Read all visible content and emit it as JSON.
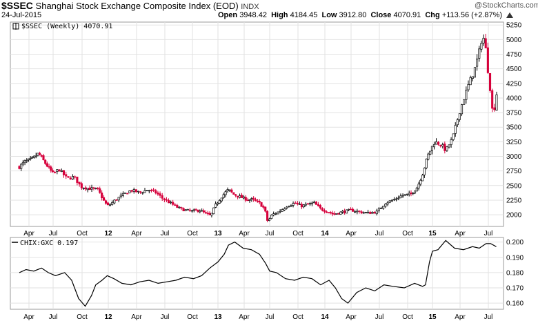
{
  "header": {
    "ticker": "$SSEC",
    "name": "Shanghai Stock Exchange Composite Index (EOD)",
    "exchange": "INDX",
    "date": "24-Jul-2015",
    "open_label": "Open",
    "open": "3948.42",
    "high_label": "High",
    "high": "4184.45",
    "low_label": "Low",
    "low": "3912.80",
    "close_label": "Close",
    "close": "4070.91",
    "chg_label": "Chg",
    "chg": "+113.56 (+2.87%)",
    "watermark": "@StockCharts.com",
    "chg_icon": "triangle-up-icon"
  },
  "chart_data": [
    {
      "type": "candlestick",
      "legend": "$SSEC (Weekly) 4070.91",
      "y_ticks": [
        "5250",
        "5000",
        "4750",
        "4500",
        "4250",
        "4000",
        "3750",
        "3500",
        "3250",
        "3000",
        "2750",
        "2500",
        "2250",
        "2000"
      ],
      "ylim": [
        1800,
        5300
      ],
      "x_ticks": [
        {
          "label": "Apr",
          "bold": false
        },
        {
          "label": "Jul",
          "bold": false
        },
        {
          "label": "Oct",
          "bold": false
        },
        {
          "label": "12",
          "bold": true
        },
        {
          "label": "Apr",
          "bold": false
        },
        {
          "label": "Jul",
          "bold": false
        },
        {
          "label": "Oct",
          "bold": false
        },
        {
          "label": "13",
          "bold": true
        },
        {
          "label": "Apr",
          "bold": false
        },
        {
          "label": "Jul",
          "bold": false
        },
        {
          "label": "Oct",
          "bold": false
        },
        {
          "label": "14",
          "bold": true
        },
        {
          "label": "Apr",
          "bold": false
        },
        {
          "label": "Jul",
          "bold": false
        },
        {
          "label": "Oct",
          "bold": false
        },
        {
          "label": "15",
          "bold": true
        },
        {
          "label": "Apr",
          "bold": false
        },
        {
          "label": "Jul",
          "bold": false
        }
      ],
      "close_path": [
        [
          2011.15,
          2820
        ],
        [
          2011.2,
          2900
        ],
        [
          2011.28,
          2950
        ],
        [
          2011.35,
          3050
        ],
        [
          2011.42,
          2880
        ],
        [
          2011.5,
          2700
        ],
        [
          2011.55,
          2780
        ],
        [
          2011.62,
          2620
        ],
        [
          2011.68,
          2650
        ],
        [
          2011.74,
          2480
        ],
        [
          2011.82,
          2450
        ],
        [
          2011.9,
          2430
        ],
        [
          2011.97,
          2200
        ],
        [
          2012.0,
          2150
        ],
        [
          2012.06,
          2250
        ],
        [
          2012.12,
          2330
        ],
        [
          2012.2,
          2420
        ],
        [
          2012.28,
          2380
        ],
        [
          2012.35,
          2430
        ],
        [
          2012.42,
          2380
        ],
        [
          2012.48,
          2280
        ],
        [
          2012.55,
          2200
        ],
        [
          2012.62,
          2120
        ],
        [
          2012.68,
          2080
        ],
        [
          2012.75,
          2060
        ],
        [
          2012.82,
          2080
        ],
        [
          2012.88,
          2020
        ],
        [
          2012.93,
          1980
        ],
        [
          2012.97,
          2150
        ],
        [
          2013.03,
          2300
        ],
        [
          2013.08,
          2400
        ],
        [
          2013.1,
          2430
        ],
        [
          2013.15,
          2350
        ],
        [
          2013.22,
          2300
        ],
        [
          2013.28,
          2260
        ],
        [
          2013.33,
          2260
        ],
        [
          2013.4,
          2200
        ],
        [
          2013.45,
          2100
        ],
        [
          2013.48,
          1880
        ],
        [
          2013.52,
          2000
        ],
        [
          2013.58,
          2050
        ],
        [
          2013.65,
          2150
        ],
        [
          2013.72,
          2200
        ],
        [
          2013.78,
          2150
        ],
        [
          2013.85,
          2180
        ],
        [
          2013.9,
          2200
        ],
        [
          2013.96,
          2100
        ],
        [
          2014.02,
          2060
        ],
        [
          2014.08,
          2010
        ],
        [
          2014.15,
          2040
        ],
        [
          2014.25,
          2080
        ],
        [
          2014.32,
          2050
        ],
        [
          2014.4,
          2030
        ],
        [
          2014.48,
          2050
        ],
        [
          2014.55,
          2200
        ],
        [
          2014.62,
          2250
        ],
        [
          2014.7,
          2330
        ],
        [
          2014.78,
          2350
        ],
        [
          2014.85,
          2480
        ],
        [
          2014.9,
          2700
        ],
        [
          2014.95,
          3000
        ],
        [
          2015.02,
          3250
        ],
        [
          2015.08,
          3200
        ],
        [
          2015.12,
          3100
        ],
        [
          2015.18,
          3300
        ],
        [
          2015.25,
          3800
        ],
        [
          2015.32,
          4200
        ],
        [
          2015.38,
          4500
        ],
        [
          2015.42,
          4800
        ],
        [
          2015.45,
          5100
        ],
        [
          2015.48,
          4800
        ],
        [
          2015.5,
          4400
        ],
        [
          2015.52,
          4100
        ],
        [
          2015.54,
          3700
        ],
        [
          2015.56,
          3900
        ],
        [
          2015.57,
          4070
        ]
      ]
    },
    {
      "type": "line",
      "legend": "CHIX:GXC 0.197",
      "y_ticks": [
        "0.200",
        "0.190",
        "0.180",
        "0.170",
        "0.160"
      ],
      "ylim": [
        0.156,
        0.203
      ],
      "x_ticks": [
        {
          "label": "Apr",
          "bold": false
        },
        {
          "label": "Jul",
          "bold": false
        },
        {
          "label": "Oct",
          "bold": false
        },
        {
          "label": "12",
          "bold": true
        },
        {
          "label": "Apr",
          "bold": false
        },
        {
          "label": "Jul",
          "bold": false
        },
        {
          "label": "Oct",
          "bold": false
        },
        {
          "label": "13",
          "bold": true
        },
        {
          "label": "Apr",
          "bold": false
        },
        {
          "label": "Jul",
          "bold": false
        },
        {
          "label": "Oct",
          "bold": false
        },
        {
          "label": "14",
          "bold": true
        },
        {
          "label": "Apr",
          "bold": false
        },
        {
          "label": "Jul",
          "bold": false
        },
        {
          "label": "Oct",
          "bold": false
        },
        {
          "label": "15",
          "bold": true
        },
        {
          "label": "Apr",
          "bold": false
        },
        {
          "label": "Jul",
          "bold": false
        }
      ],
      "series": [
        {
          "x": [
            2011.15,
            2011.22,
            2011.3,
            2011.38,
            2011.45,
            2011.52,
            2011.6,
            2011.66,
            2011.72,
            2011.78,
            2011.84,
            2011.88,
            2011.94,
            2011.99,
            2012.05,
            2012.12,
            2012.2,
            2012.28,
            2012.36,
            2012.44,
            2012.52,
            2012.6,
            2012.68,
            2012.76,
            2012.84,
            2012.92,
            2013.0,
            2013.06,
            2013.1,
            2013.16,
            2013.24,
            2013.32,
            2013.4,
            2013.46,
            2013.5,
            2013.56,
            2013.64,
            2013.72,
            2013.8,
            2013.88,
            2013.96,
            2014.04,
            2014.1,
            2014.16,
            2014.22,
            2014.3,
            2014.38,
            2014.46,
            2014.54,
            2014.62,
            2014.72,
            2014.82,
            2014.9,
            2014.93,
            2014.97,
            2015.0,
            2015.05,
            2015.12,
            2015.2,
            2015.28,
            2015.36,
            2015.42,
            2015.48,
            2015.52,
            2015.57
          ],
          "y": [
            0.18,
            0.182,
            0.181,
            0.183,
            0.18,
            0.178,
            0.18,
            0.175,
            0.163,
            0.158,
            0.165,
            0.172,
            0.175,
            0.178,
            0.176,
            0.173,
            0.172,
            0.174,
            0.175,
            0.173,
            0.174,
            0.175,
            0.177,
            0.176,
            0.178,
            0.183,
            0.187,
            0.192,
            0.198,
            0.2,
            0.196,
            0.195,
            0.192,
            0.186,
            0.181,
            0.18,
            0.176,
            0.175,
            0.177,
            0.176,
            0.172,
            0.175,
            0.17,
            0.163,
            0.16,
            0.167,
            0.17,
            0.168,
            0.172,
            0.171,
            0.17,
            0.173,
            0.171,
            0.172,
            0.187,
            0.194,
            0.195,
            0.201,
            0.196,
            0.195,
            0.197,
            0.196,
            0.199,
            0.199,
            0.197
          ]
        }
      ]
    }
  ]
}
